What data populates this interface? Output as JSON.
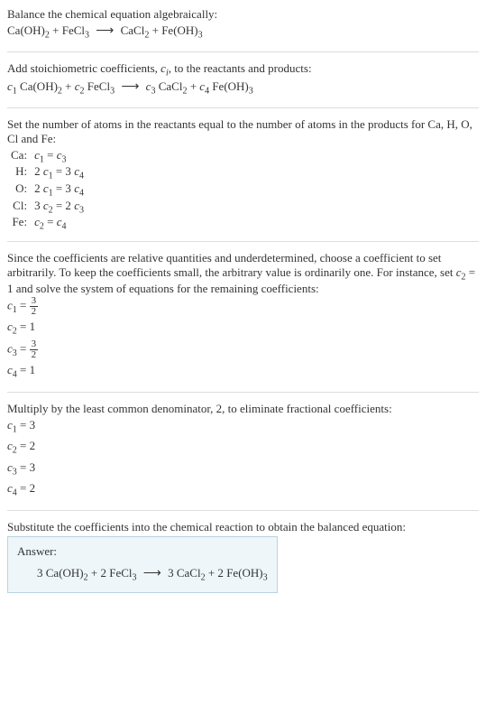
{
  "step1": {
    "title": "Balance the chemical equation algebraically:",
    "lhs1": "Ca(OH)",
    "lhs1_sub": "2",
    "plus": " + ",
    "lhs2": "FeCl",
    "lhs2_sub": "3",
    "arrow": "⟶",
    "rhs1": "CaCl",
    "rhs1_sub": "2",
    "rhs2": "Fe(OH)",
    "rhs2_sub": "3"
  },
  "step2": {
    "title_a": "Add stoichiometric coefficients, ",
    "ci": "c",
    "ci_sub": "i",
    "title_b": ", to the reactants and products:",
    "c1": "c",
    "c1_sub": "1",
    "c2": "c",
    "c2_sub": "2",
    "c3": "c",
    "c3_sub": "3",
    "c4": "c",
    "c4_sub": "4",
    "sp1": "Ca(OH)",
    "sp1_sub": "2",
    "sp2": "FeCl",
    "sp2_sub": "3",
    "sp3": "CaCl",
    "sp3_sub": "2",
    "sp4": "Fe(OH)",
    "sp4_sub": "3"
  },
  "step3": {
    "title": "Set the number of atoms in the reactants equal to the number of atoms in the products for Ca, H, O, Cl and Fe:",
    "rows": {
      "ca": {
        "el": "Ca:",
        "eq_l": "c",
        "eq_ls": "1",
        "mid": " = ",
        "eq_r": "c",
        "eq_rs": "3"
      },
      "h": {
        "el": "H:",
        "pre_l": "2 ",
        "eq_l": "c",
        "eq_ls": "1",
        "mid": " = 3 ",
        "eq_r": "c",
        "eq_rs": "4"
      },
      "o": {
        "el": "O:",
        "pre_l": "2 ",
        "eq_l": "c",
        "eq_ls": "1",
        "mid": " = 3 ",
        "eq_r": "c",
        "eq_rs": "4"
      },
      "cl": {
        "el": "Cl:",
        "pre_l": "3 ",
        "eq_l": "c",
        "eq_ls": "2",
        "mid": " = 2 ",
        "eq_r": "c",
        "eq_rs": "3"
      },
      "fe": {
        "el": "Fe:",
        "eq_l": "c",
        "eq_ls": "2",
        "mid": " = ",
        "eq_r": "c",
        "eq_rs": "4"
      }
    }
  },
  "step4": {
    "title_a": "Since the coefficients are relative quantities and underdetermined, choose a coefficient to set arbitrarily. To keep the coefficients small, the arbitrary value is ordinarily one. For instance, set ",
    "set_c": "c",
    "set_cs": "2",
    "set_eq": " = 1",
    "title_b": " and solve the system of equations for the remaining coefficients:",
    "c1": {
      "v": "c",
      "s": "1",
      "eq": " = ",
      "num": "3",
      "den": "2"
    },
    "c2": {
      "v": "c",
      "s": "2",
      "eq": " = 1"
    },
    "c3": {
      "v": "c",
      "s": "3",
      "eq": " = ",
      "num": "3",
      "den": "2"
    },
    "c4": {
      "v": "c",
      "s": "4",
      "eq": " = 1"
    }
  },
  "step5": {
    "title": "Multiply by the least common denominator, 2, to eliminate fractional coefficients:",
    "c1": {
      "v": "c",
      "s": "1",
      "eq": " = 3"
    },
    "c2": {
      "v": "c",
      "s": "2",
      "eq": " = 2"
    },
    "c3": {
      "v": "c",
      "s": "3",
      "eq": " = 3"
    },
    "c4": {
      "v": "c",
      "s": "4",
      "eq": " = 2"
    }
  },
  "step6": {
    "title": "Substitute the coefficients into the chemical reaction to obtain the balanced equation:",
    "answer_label": "Answer:",
    "n1": "3 ",
    "sp1": "Ca(OH)",
    "sp1_sub": "2",
    "plus1": " + 2 ",
    "sp2": "FeCl",
    "sp2_sub": "3",
    "arrow": "⟶",
    "n3": " 3 ",
    "sp3": "CaCl",
    "sp3_sub": "2",
    "plus2": " + 2 ",
    "sp4": "Fe(OH)",
    "sp4_sub": "3"
  },
  "colors": {
    "answer_bg": "#eef6fa",
    "answer_border": "#b8d4e0",
    "rule": "#dddddd",
    "text": "#333333"
  }
}
